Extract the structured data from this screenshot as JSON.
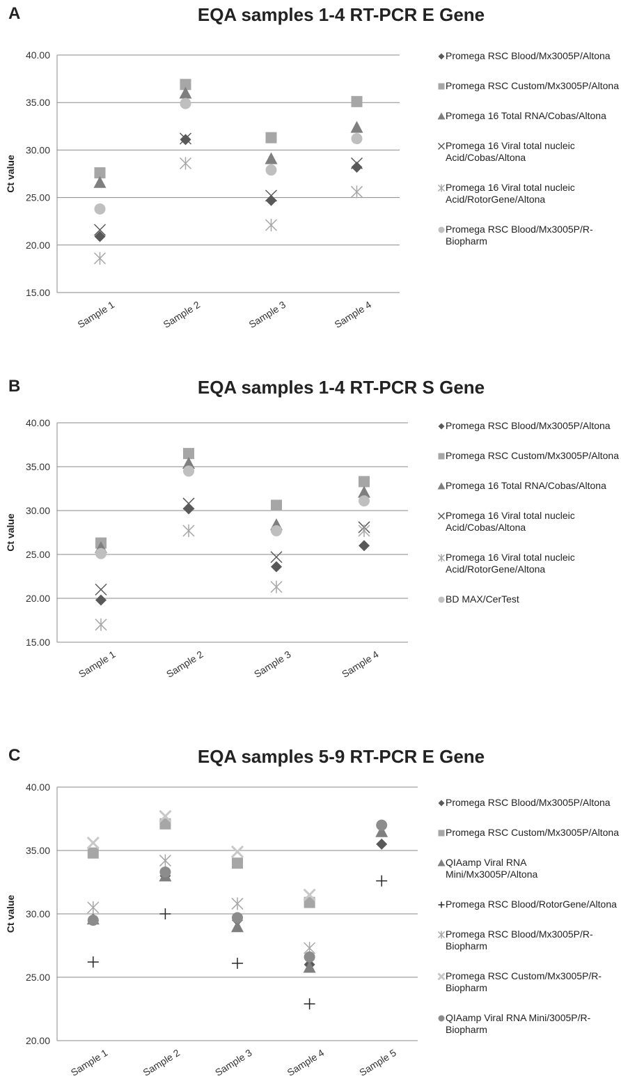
{
  "panels": [
    {
      "letter": "A",
      "title": "EQA samples 1-4 RT-PCR E Gene",
      "ylabel": "Ct value",
      "legend": [
        "Promega RSC Blood/Mx3005P/Altona",
        "Promega RSC Custom/Mx3005P/Altona",
        "Promega 16 Total RNA/Cobas/Altona",
        "Promega 16 Viral total nucleic Acid/Cobas/Altona",
        "Promega 16 Viral total nucleic Acid/RotorGene/Altona",
        "Promega RSC Blood/Mx3005P/R-Biopharm"
      ]
    },
    {
      "letter": "B",
      "title": "EQA samples 1-4 RT-PCR S Gene",
      "ylabel": "Ct value",
      "legend": [
        "Promega RSC Blood/Mx3005P/Altona",
        "Promega RSC Custom/Mx3005P/Altona",
        "Promega 16 Total RNA/Cobas/Altona",
        "Promega 16 Viral total nucleic Acid/Cobas/Altona",
        "Promega 16 Viral total nucleic Acid/RotorGene/Altona",
        "BD MAX/CerTest"
      ]
    },
    {
      "letter": "C",
      "title": "EQA samples 5-9 RT-PCR E Gene",
      "ylabel": "Ct value",
      "legend": [
        "Promega RSC Blood/Mx3005P/Altona",
        "Promega RSC Custom/Mx3005P/Altona",
        "QIAamp Viral RNA Mini/Mx3005P/Altona",
        "Promega RSC Blood/RotorGene/Altona",
        "Promega RSC Blood/Mx3005P/R-Biopharm",
        "Promega RSC Custom/Mx3005P/R-Biopharm",
        "QIAamp Viral RNA Mini/3005P/R-Biopharm"
      ]
    }
  ],
  "marker_colors": {
    "diamond": "#595959",
    "square": "#a6a6a6",
    "triangle": "#7f7f7f",
    "x": "#595959",
    "star": "#a6a6a6",
    "circle_light": "#bfbfbf",
    "plus": "#262626",
    "x_light": "#c8c8c8",
    "circle_dark": "#8c8c8c"
  },
  "chart_data": [
    {
      "type": "scatter",
      "title": "EQA samples 1-4 RT-PCR E Gene",
      "ylabel": "Ct value",
      "categories": [
        "Sample 1",
        "Sample 2",
        "Sample 3",
        "Sample 4"
      ],
      "ylim": [
        15,
        40
      ],
      "yticks": [
        "15.00",
        "20.00",
        "25.00",
        "30.00",
        "35.00",
        "40.00"
      ],
      "grid": true,
      "legend_position": "right",
      "series": [
        {
          "name": "Promega RSC Blood/Mx3005P/Altona",
          "marker": "diamond",
          "color": "#595959",
          "values": [
            20.9,
            31.1,
            24.7,
            28.2
          ]
        },
        {
          "name": "Promega RSC Custom/Mx3005P/Altona",
          "marker": "square",
          "color": "#a6a6a6",
          "values": [
            27.6,
            36.9,
            31.3,
            35.1
          ]
        },
        {
          "name": "Promega 16 Total RNA/Cobas/Altona",
          "marker": "triangle",
          "color": "#7f7f7f",
          "values": [
            26.6,
            36.0,
            29.1,
            32.4
          ]
        },
        {
          "name": "Promega 16 Viral total nucleic Acid/Cobas/Altona",
          "marker": "x",
          "color": "#595959",
          "values": [
            21.6,
            31.2,
            25.2,
            28.6
          ]
        },
        {
          "name": "Promega 16 Viral total nucleic Acid/RotorGene/Altona",
          "marker": "star",
          "color": "#a6a6a6",
          "values": [
            18.6,
            28.6,
            22.1,
            25.6
          ]
        },
        {
          "name": "Promega RSC Blood/Mx3005P/R-Biopharm",
          "marker": "circle_light",
          "color": "#bfbfbf",
          "values": [
            23.8,
            34.9,
            27.9,
            31.2
          ]
        }
      ]
    },
    {
      "type": "scatter",
      "title": "EQA samples 1-4 RT-PCR S Gene",
      "ylabel": "Ct value",
      "categories": [
        "Sample 1",
        "Sample 2",
        "Sample 3",
        "Sample 4"
      ],
      "ylim": [
        15,
        40
      ],
      "yticks": [
        "15.00",
        "20.00",
        "25.00",
        "30.00",
        "35.00",
        "40.00"
      ],
      "grid": true,
      "legend_position": "right",
      "series": [
        {
          "name": "Promega RSC Blood/Mx3005P/Altona",
          "marker": "diamond",
          "color": "#595959",
          "values": [
            19.8,
            30.2,
            23.6,
            26.0
          ]
        },
        {
          "name": "Promega RSC Custom/Mx3005P/Altona",
          "marker": "square",
          "color": "#a6a6a6",
          "values": [
            26.3,
            36.5,
            30.6,
            33.3
          ]
        },
        {
          "name": "Promega 16 Total RNA/Cobas/Altona",
          "marker": "triangle",
          "color": "#7f7f7f",
          "values": [
            25.8,
            35.4,
            28.4,
            32.1
          ]
        },
        {
          "name": "Promega 16 Viral total nucleic Acid/Cobas/Altona",
          "marker": "x",
          "color": "#595959",
          "values": [
            21.0,
            30.8,
            24.7,
            28.1
          ]
        },
        {
          "name": "Promega 16 Viral total nucleic Acid/RotorGene/Altona",
          "marker": "star",
          "color": "#a6a6a6",
          "values": [
            17.0,
            27.7,
            21.3,
            27.7
          ]
        },
        {
          "name": "BD MAX/CerTest",
          "marker": "circle_light",
          "color": "#bfbfbf",
          "values": [
            25.1,
            34.5,
            27.7,
            31.1
          ]
        }
      ]
    },
    {
      "type": "scatter",
      "title": "EQA samples 5-9 RT-PCR E Gene",
      "ylabel": "Ct value",
      "categories": [
        "Sample 1",
        "Sample 2",
        "Sample 3",
        "Sample 4",
        "Sample 5"
      ],
      "ylim": [
        20,
        40
      ],
      "yticks": [
        "20.00",
        "25.00",
        "30.00",
        "35.00",
        "40.00"
      ],
      "grid": true,
      "legend_position": "right",
      "series": [
        {
          "name": "Promega RSC Blood/Mx3005P/Altona",
          "marker": "diamond",
          "color": "#595959",
          "values": [
            29.5,
            33.0,
            29.5,
            26.0,
            35.5
          ]
        },
        {
          "name": "Promega RSC Custom/Mx3005P/Altona",
          "marker": "square",
          "color": "#a6a6a6",
          "values": [
            34.8,
            37.1,
            34.0,
            30.9,
            null
          ]
        },
        {
          "name": "QIAamp Viral RNA Mini/Mx3005P/Altona",
          "marker": "triangle",
          "color": "#7f7f7f",
          "values": [
            29.6,
            33.0,
            29.0,
            25.8,
            36.5
          ]
        },
        {
          "name": "Promega RSC Blood/RotorGene/Altona",
          "marker": "plus",
          "color": "#262626",
          "values": [
            26.2,
            30.0,
            26.1,
            22.9,
            32.6
          ]
        },
        {
          "name": "Promega RSC Blood/Mx3005P/R-Biopharm",
          "marker": "star",
          "color": "#a6a6a6",
          "values": [
            30.5,
            34.2,
            30.8,
            27.3,
            null
          ]
        },
        {
          "name": "Promega RSC Custom/Mx3005P/R-Biopharm",
          "marker": "x_light",
          "color": "#c8c8c8",
          "values": [
            35.6,
            37.7,
            34.9,
            31.5,
            null
          ]
        },
        {
          "name": "QIAamp Viral RNA Mini/3005P/R-Biopharm",
          "marker": "circle_dark",
          "color": "#8c8c8c",
          "values": [
            29.5,
            33.3,
            29.7,
            26.6,
            37.0
          ]
        }
      ]
    }
  ]
}
